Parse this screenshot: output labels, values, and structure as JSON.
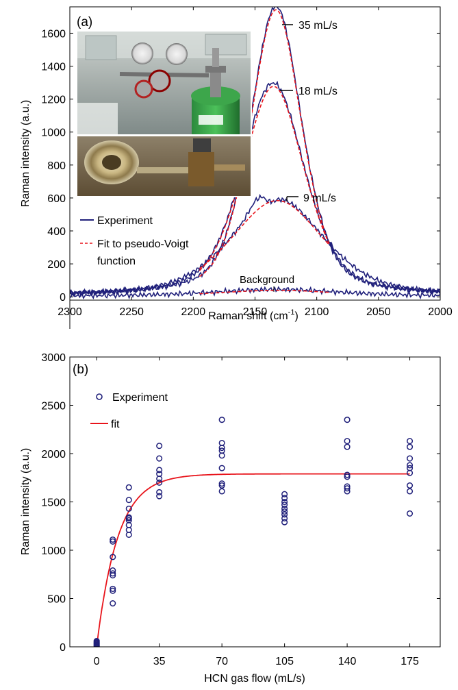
{
  "chart_data": [
    {
      "type": "line",
      "panel_label": "(a)",
      "xlabel": "Raman shift (cm",
      "xlabel_sup": "-1",
      "xlabel_end": ")",
      "ylabel": "Raman intensity (a.u.)",
      "xlim": [
        2300,
        2000
      ],
      "x_reversed": true,
      "ylim": [
        -20,
        1760
      ],
      "xticks": [
        2300,
        2250,
        2200,
        2150,
        2100,
        2050,
        2000
      ],
      "yticks": [
        0,
        200,
        400,
        600,
        800,
        1000,
        1200,
        1400,
        1600
      ],
      "legend": [
        {
          "label": "Experiment",
          "style": "solid",
          "color": "#1f1f7a"
        },
        {
          "label": "Fit to pseudo-Voigt",
          "label2": "function",
          "style": "dashed",
          "color": "#e8141b"
        }
      ],
      "legend_position": "middle-left",
      "inset_photos": [
        "gas-cylinder-regulator-photo",
        "gas-nozzle-valve-photo"
      ],
      "peaks": [
        {
          "flow_label": "35 mL/s",
          "center": 2133,
          "height": 1760,
          "width": 25
        },
        {
          "flow_label": "18 mL/s",
          "center": 2135,
          "height": 1290,
          "width": 30
        },
        {
          "flow_label": "9 mL/s",
          "center": 2132,
          "height": 590,
          "width": 45
        },
        {
          "flow_label": "Background",
          "center": 2132,
          "height": 40,
          "width": 60
        }
      ],
      "fit_range": [
        2195,
        2090
      ],
      "series_color_experiment": "#1f1f7a",
      "series_color_fit": "#e8141b"
    },
    {
      "type": "scatter",
      "panel_label": "(b)",
      "xlabel": "HCN gas flow (mL/s)",
      "ylabel": "Raman intensity (a.u.)",
      "xlim": [
        -15,
        192
      ],
      "ylim": [
        0,
        3000
      ],
      "xticks": [
        0,
        35,
        70,
        105,
        140,
        175
      ],
      "yticks": [
        0,
        500,
        1000,
        1500,
        2000,
        2500,
        3000
      ],
      "legend": [
        {
          "label": "Experiment",
          "marker": "circle",
          "color": "#1f1f7a"
        },
        {
          "label": "fit",
          "style": "solid",
          "color": "#e8141b"
        }
      ],
      "legend_position": "top-left",
      "points": [
        {
          "x": 0,
          "ys": [
            10,
            20,
            30,
            40,
            50,
            60
          ]
        },
        {
          "x": 9,
          "ys": [
            450,
            580,
            600,
            740,
            760,
            790,
            930,
            1090,
            1110
          ]
        },
        {
          "x": 18,
          "ys": [
            1160,
            1210,
            1260,
            1310,
            1330,
            1340,
            1430,
            1520,
            1650
          ]
        },
        {
          "x": 35,
          "ys": [
            1560,
            1600,
            1700,
            1740,
            1790,
            1830,
            1950,
            2080
          ]
        },
        {
          "x": 70,
          "ys": [
            1610,
            1670,
            1690,
            1850,
            1980,
            2030,
            2060,
            2110,
            2350
          ]
        },
        {
          "x": 105,
          "ys": [
            1290,
            1330,
            1370,
            1400,
            1430,
            1470,
            1500,
            1540,
            1580
          ]
        },
        {
          "x": 140,
          "ys": [
            1610,
            1640,
            1660,
            1760,
            1780,
            2070,
            2130,
            2350
          ]
        },
        {
          "x": 175,
          "ys": [
            1380,
            1610,
            1670,
            1800,
            1850,
            1880,
            1950,
            2070,
            2130
          ]
        }
      ],
      "fit": {
        "ymax": 1790,
        "rate": 0.085
      }
    }
  ]
}
